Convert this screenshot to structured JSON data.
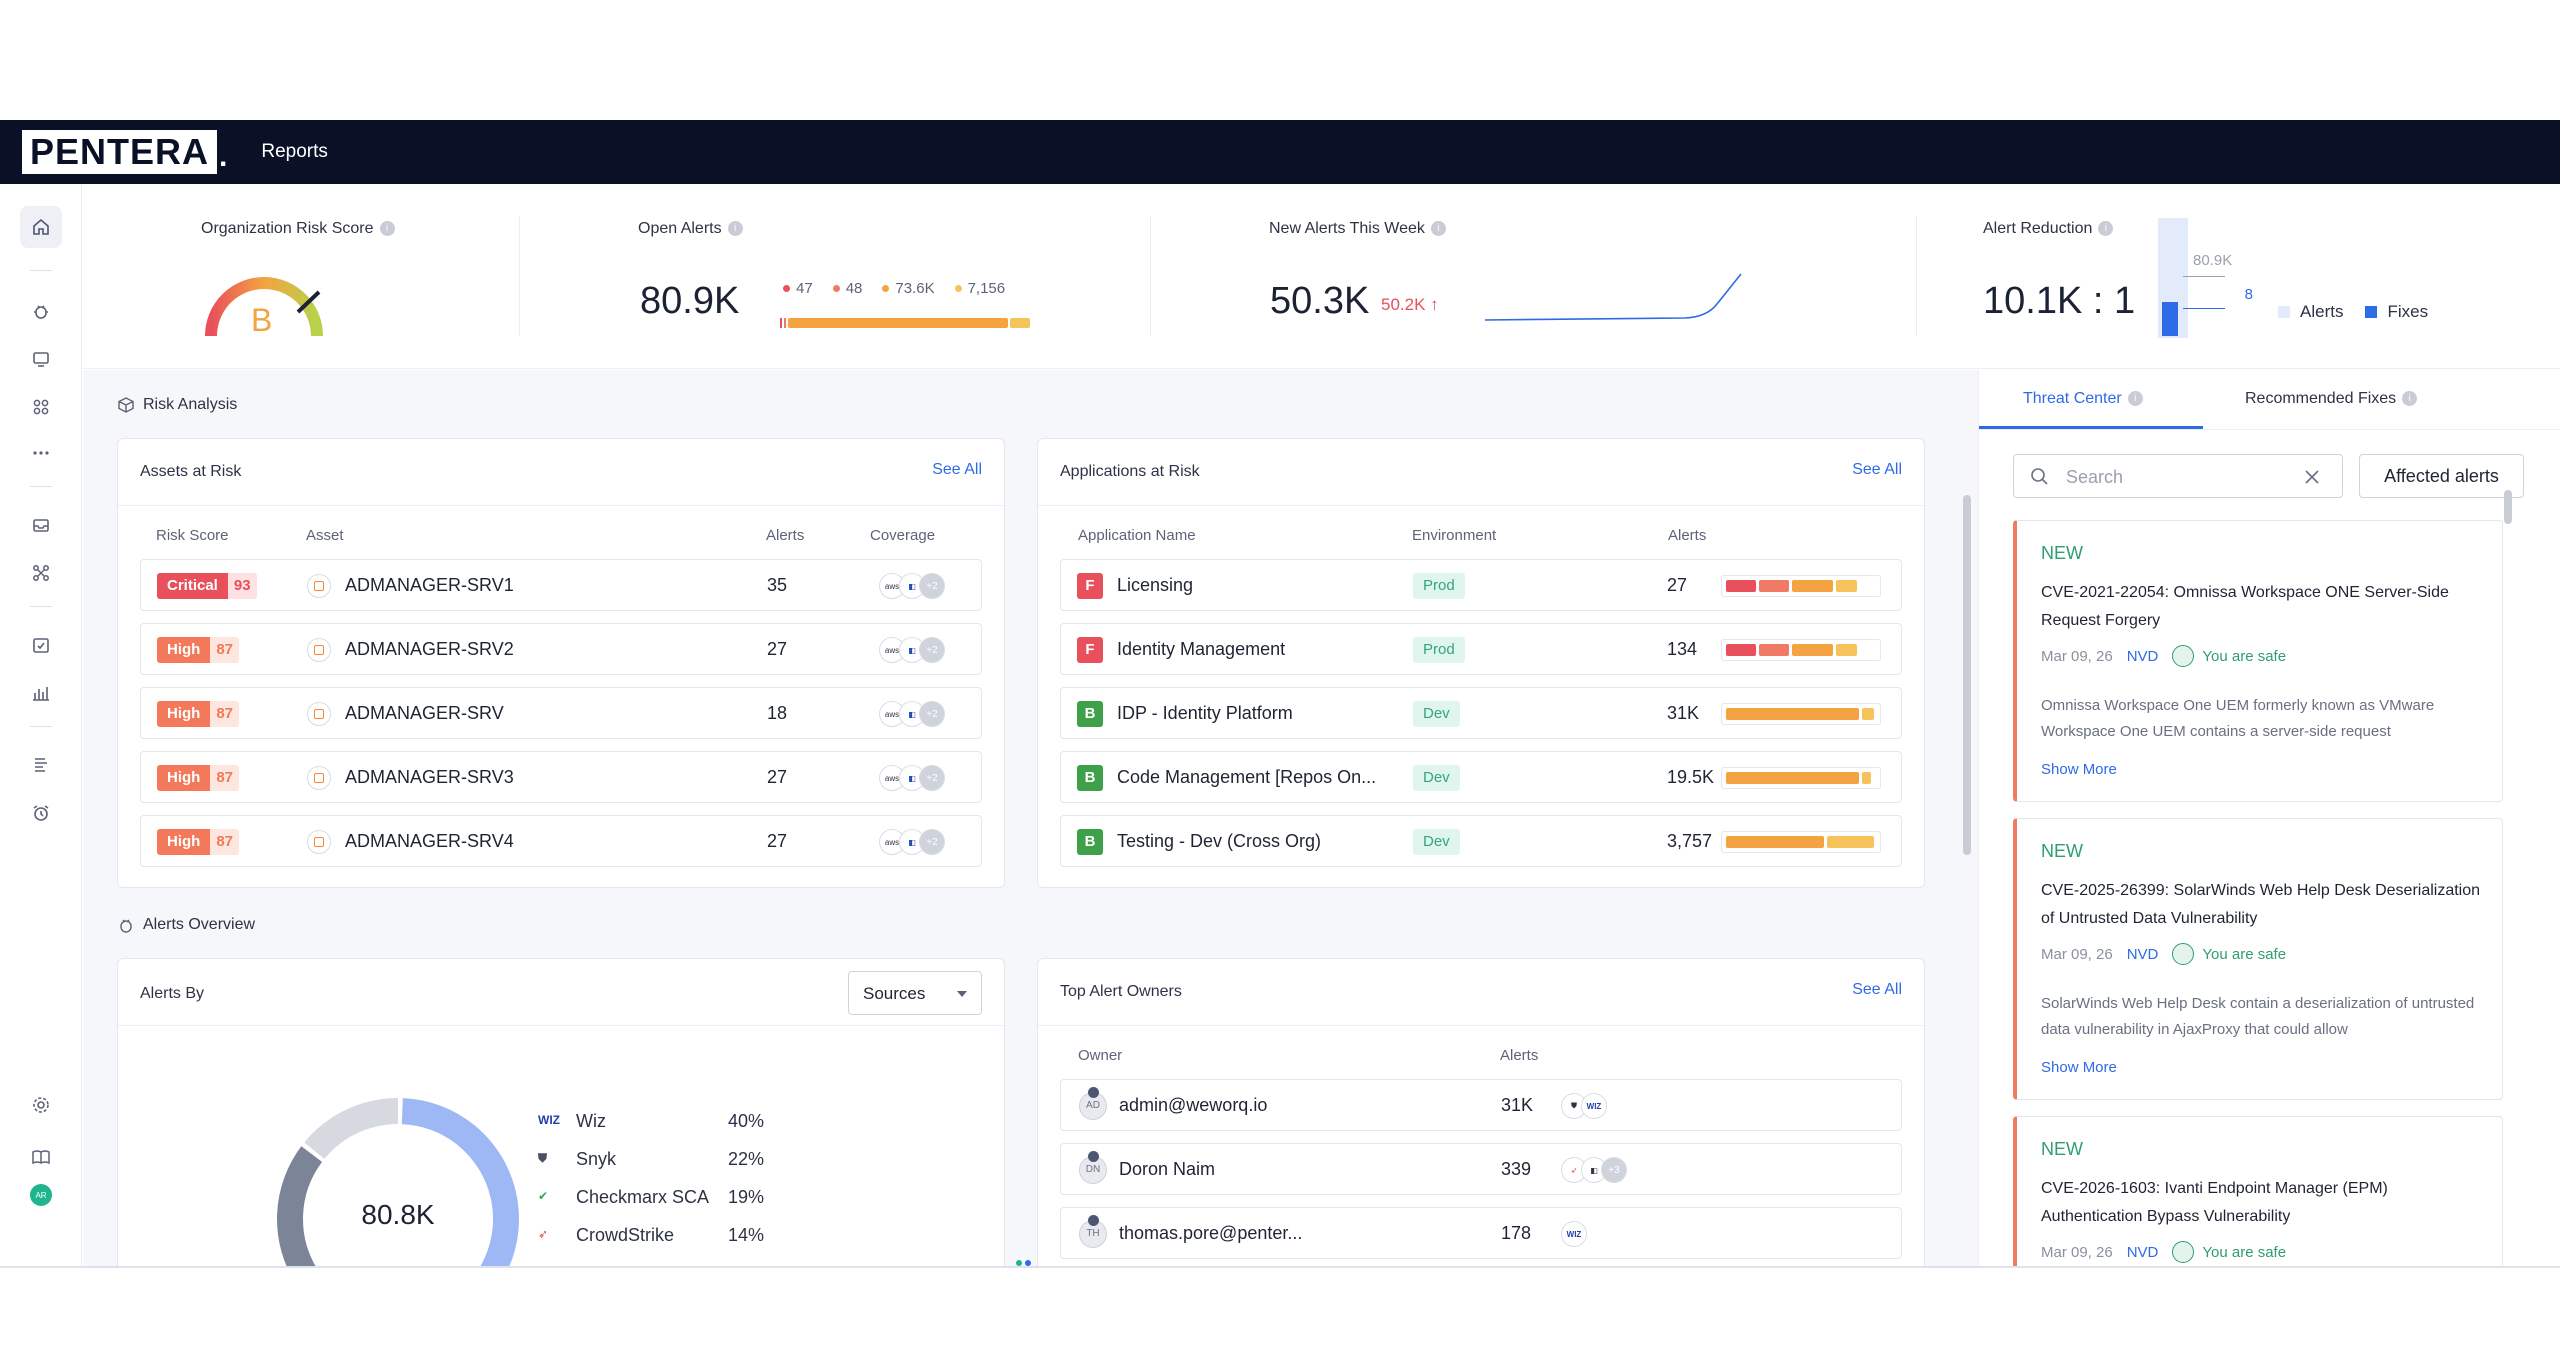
{
  "app": {
    "brand": "PENTERA",
    "nav_reports": "Reports"
  },
  "kpi": {
    "risk_score": {
      "title": "Organization Risk Score",
      "grade": "B"
    },
    "open_alerts": {
      "title": "Open Alerts",
      "value": "80.9K",
      "breakdown": [
        {
          "label": "47",
          "color": "#e8505b"
        },
        {
          "label": "48",
          "color": "#f07a63"
        },
        {
          "label": "73.6K",
          "color": "#f4a340"
        },
        {
          "label": "7,156",
          "color": "#f6c35b"
        }
      ]
    },
    "new_alerts": {
      "title": "New Alerts This Week",
      "value": "50.3K",
      "delta": "50.2K ↑"
    },
    "reduction": {
      "title": "Alert Reduction",
      "value": "10.1K : 1",
      "alerts_val": "80.9K",
      "fixes_val": "8",
      "legend_alerts": "Alerts",
      "legend_fixes": "Fixes"
    }
  },
  "risk_analysis": {
    "title": "Risk Analysis",
    "assets": {
      "title": "Assets at Risk",
      "see_all": "See All",
      "columns": [
        "Risk Score",
        "Asset",
        "Alerts",
        "Coverage"
      ],
      "rows": [
        {
          "level": "Critical",
          "score": "93",
          "asset": "ADMANAGER-SRV1",
          "alerts": "35"
        },
        {
          "level": "High",
          "score": "87",
          "asset": "ADMANAGER-SRV2",
          "alerts": "27"
        },
        {
          "level": "High",
          "score": "87",
          "asset": "ADMANAGER-SRV",
          "alerts": "18"
        },
        {
          "level": "High",
          "score": "87",
          "asset": "ADMANAGER-SRV3",
          "alerts": "27"
        },
        {
          "level": "High",
          "score": "87",
          "asset": "ADMANAGER-SRV4",
          "alerts": "27"
        }
      ],
      "coverage_more": "+2"
    },
    "applications": {
      "title": "Applications at Risk",
      "see_all": "See All",
      "columns": [
        "Application Name",
        "Environment",
        "Alerts"
      ],
      "rows": [
        {
          "grade": "F",
          "name": "Licensing",
          "env": "Prod",
          "alerts": "27",
          "bar": [
            0.2,
            0.2,
            0.28,
            0.14
          ]
        },
        {
          "grade": "F",
          "name": "Identity Management",
          "env": "Prod",
          "alerts": "134",
          "bar": [
            0.2,
            0.2,
            0.28,
            0.14
          ]
        },
        {
          "grade": "B",
          "name": "IDP - Identity Platform",
          "env": "Dev",
          "alerts": "31K",
          "bar": [
            0,
            0,
            0.9,
            0.08
          ]
        },
        {
          "grade": "B",
          "name": "Code Management [Repos On...",
          "env": "Dev",
          "alerts": "19.5K",
          "bar": [
            0,
            0,
            0.9,
            0.06
          ]
        },
        {
          "grade": "B",
          "name": "Testing - Dev (Cross Org)",
          "env": "Dev",
          "alerts": "3,757",
          "bar": [
            0,
            0,
            0.66,
            0.32
          ]
        }
      ]
    }
  },
  "alerts_overview": {
    "title": "Alerts Overview",
    "alerts_by": {
      "title": "Alerts By",
      "select_value": "Sources",
      "total": "80.8K",
      "sources": [
        {
          "icon": "WIZ",
          "name": "Wiz",
          "pct": "40%",
          "value": 40,
          "color": "#9db8f5",
          "icon_color": "#1e3fa8"
        },
        {
          "icon": "⛊",
          "name": "Snyk",
          "pct": "22%",
          "value": 22,
          "color": "#1e4fb0",
          "icon_color": "#4a4f63"
        },
        {
          "icon": "✔",
          "name": "Checkmarx SCA",
          "pct": "19%",
          "value": 19,
          "color": "#7c8497",
          "icon_color": "#2fa84f"
        },
        {
          "icon": "➶",
          "name": "CrowdStrike",
          "pct": "14%",
          "value": 14,
          "color": "#d6d9e0",
          "icon_color": "#e0453b"
        }
      ]
    },
    "owners": {
      "title": "Top Alert Owners",
      "see_all": "See All",
      "columns": [
        "Owner",
        "Alerts"
      ],
      "rows": [
        {
          "initials": "AD",
          "name": "admin@weworq.io",
          "alerts": "31K",
          "sources": [
            "⛊",
            "WIZ"
          ]
        },
        {
          "initials": "DN",
          "name": "Doron Naim",
          "alerts": "339",
          "sources": [
            "➶",
            "◧",
            "+3"
          ]
        },
        {
          "initials": "TH",
          "name": "thomas.pore@penter...",
          "alerts": "178",
          "sources": [
            "WIZ"
          ]
        }
      ]
    }
  },
  "right_panel": {
    "tabs": [
      "Threat Center",
      "Recommended Fixes"
    ],
    "search_placeholder": "Search",
    "affected_button": "Affected alerts",
    "threats": [
      {
        "badge": "NEW",
        "title": "CVE-2021-22054: Omnissa Workspace ONE Server-Side Request Forgery",
        "date": "Mar 09, 26",
        "source": "NVD",
        "status": "You are safe",
        "desc": "Omnissa Workspace One UEM formerly known as VMware Workspace One UEM contains a server-side request",
        "more": "Show More"
      },
      {
        "badge": "NEW",
        "title": "CVE-2025-26399: SolarWinds Web Help Desk Deserialization of Untrusted Data Vulnerability",
        "date": "Mar 09, 26",
        "source": "NVD",
        "status": "You are safe",
        "desc": "SolarWinds Web Help Desk contain a deserialization of untrusted data vulnerability in AjaxProxy that could allow",
        "more": "Show More"
      },
      {
        "badge": "NEW",
        "title": "CVE-2026-1603: Ivanti Endpoint Manager (EPM) Authentication Bypass Vulnerability",
        "date": "Mar 09, 26",
        "source": "NVD",
        "status": "You are safe",
        "desc": "",
        "more": ""
      }
    ]
  },
  "colors": {
    "critical": "#e8505b",
    "high": "#f4785a",
    "grade_f": "#e8505b",
    "grade_b": "#3fa04a",
    "accent": "#2e6be6"
  }
}
